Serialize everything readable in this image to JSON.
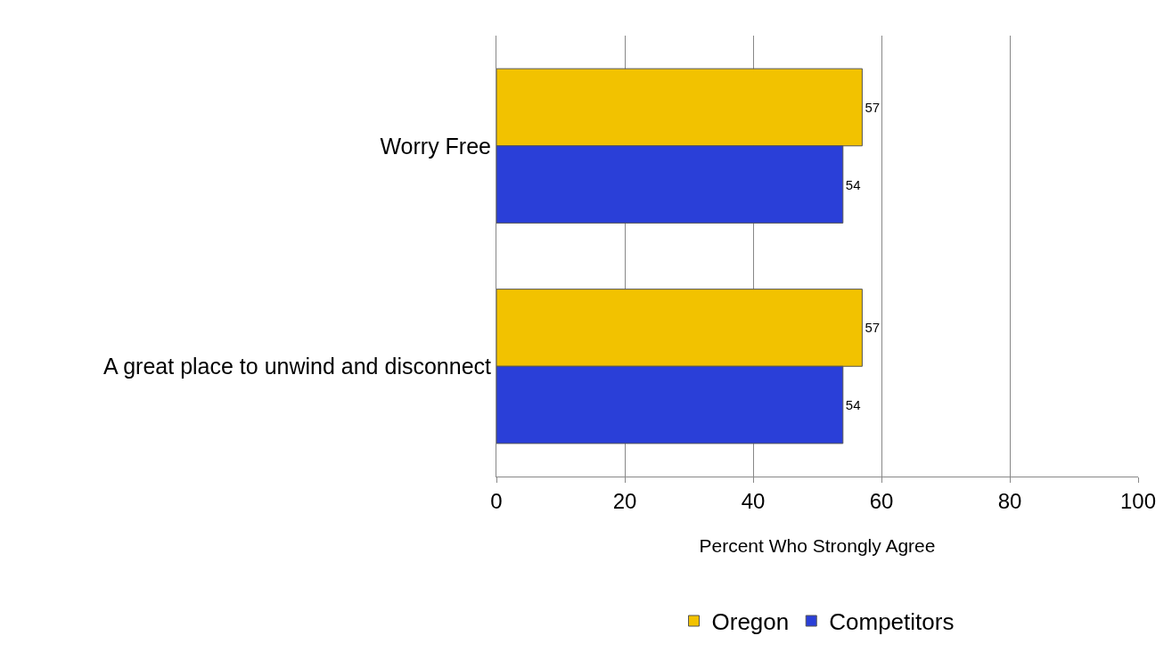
{
  "chart_data": {
    "type": "bar",
    "orientation": "horizontal",
    "categories": [
      "Worry Free",
      "A great place to unwind and disconnect"
    ],
    "series": [
      {
        "name": "Oregon",
        "color": "#f2c200",
        "values": [
          57,
          57
        ]
      },
      {
        "name": "Competitors",
        "color": "#2a3fd8",
        "values": [
          54,
          54
        ]
      }
    ],
    "xlabel": "Percent Who Strongly Agree",
    "xlim": [
      0,
      100
    ],
    "xticks": [
      0,
      20,
      40,
      60,
      80,
      100
    ],
    "grid": "x",
    "legend": "bottom",
    "data_labels": true
  }
}
